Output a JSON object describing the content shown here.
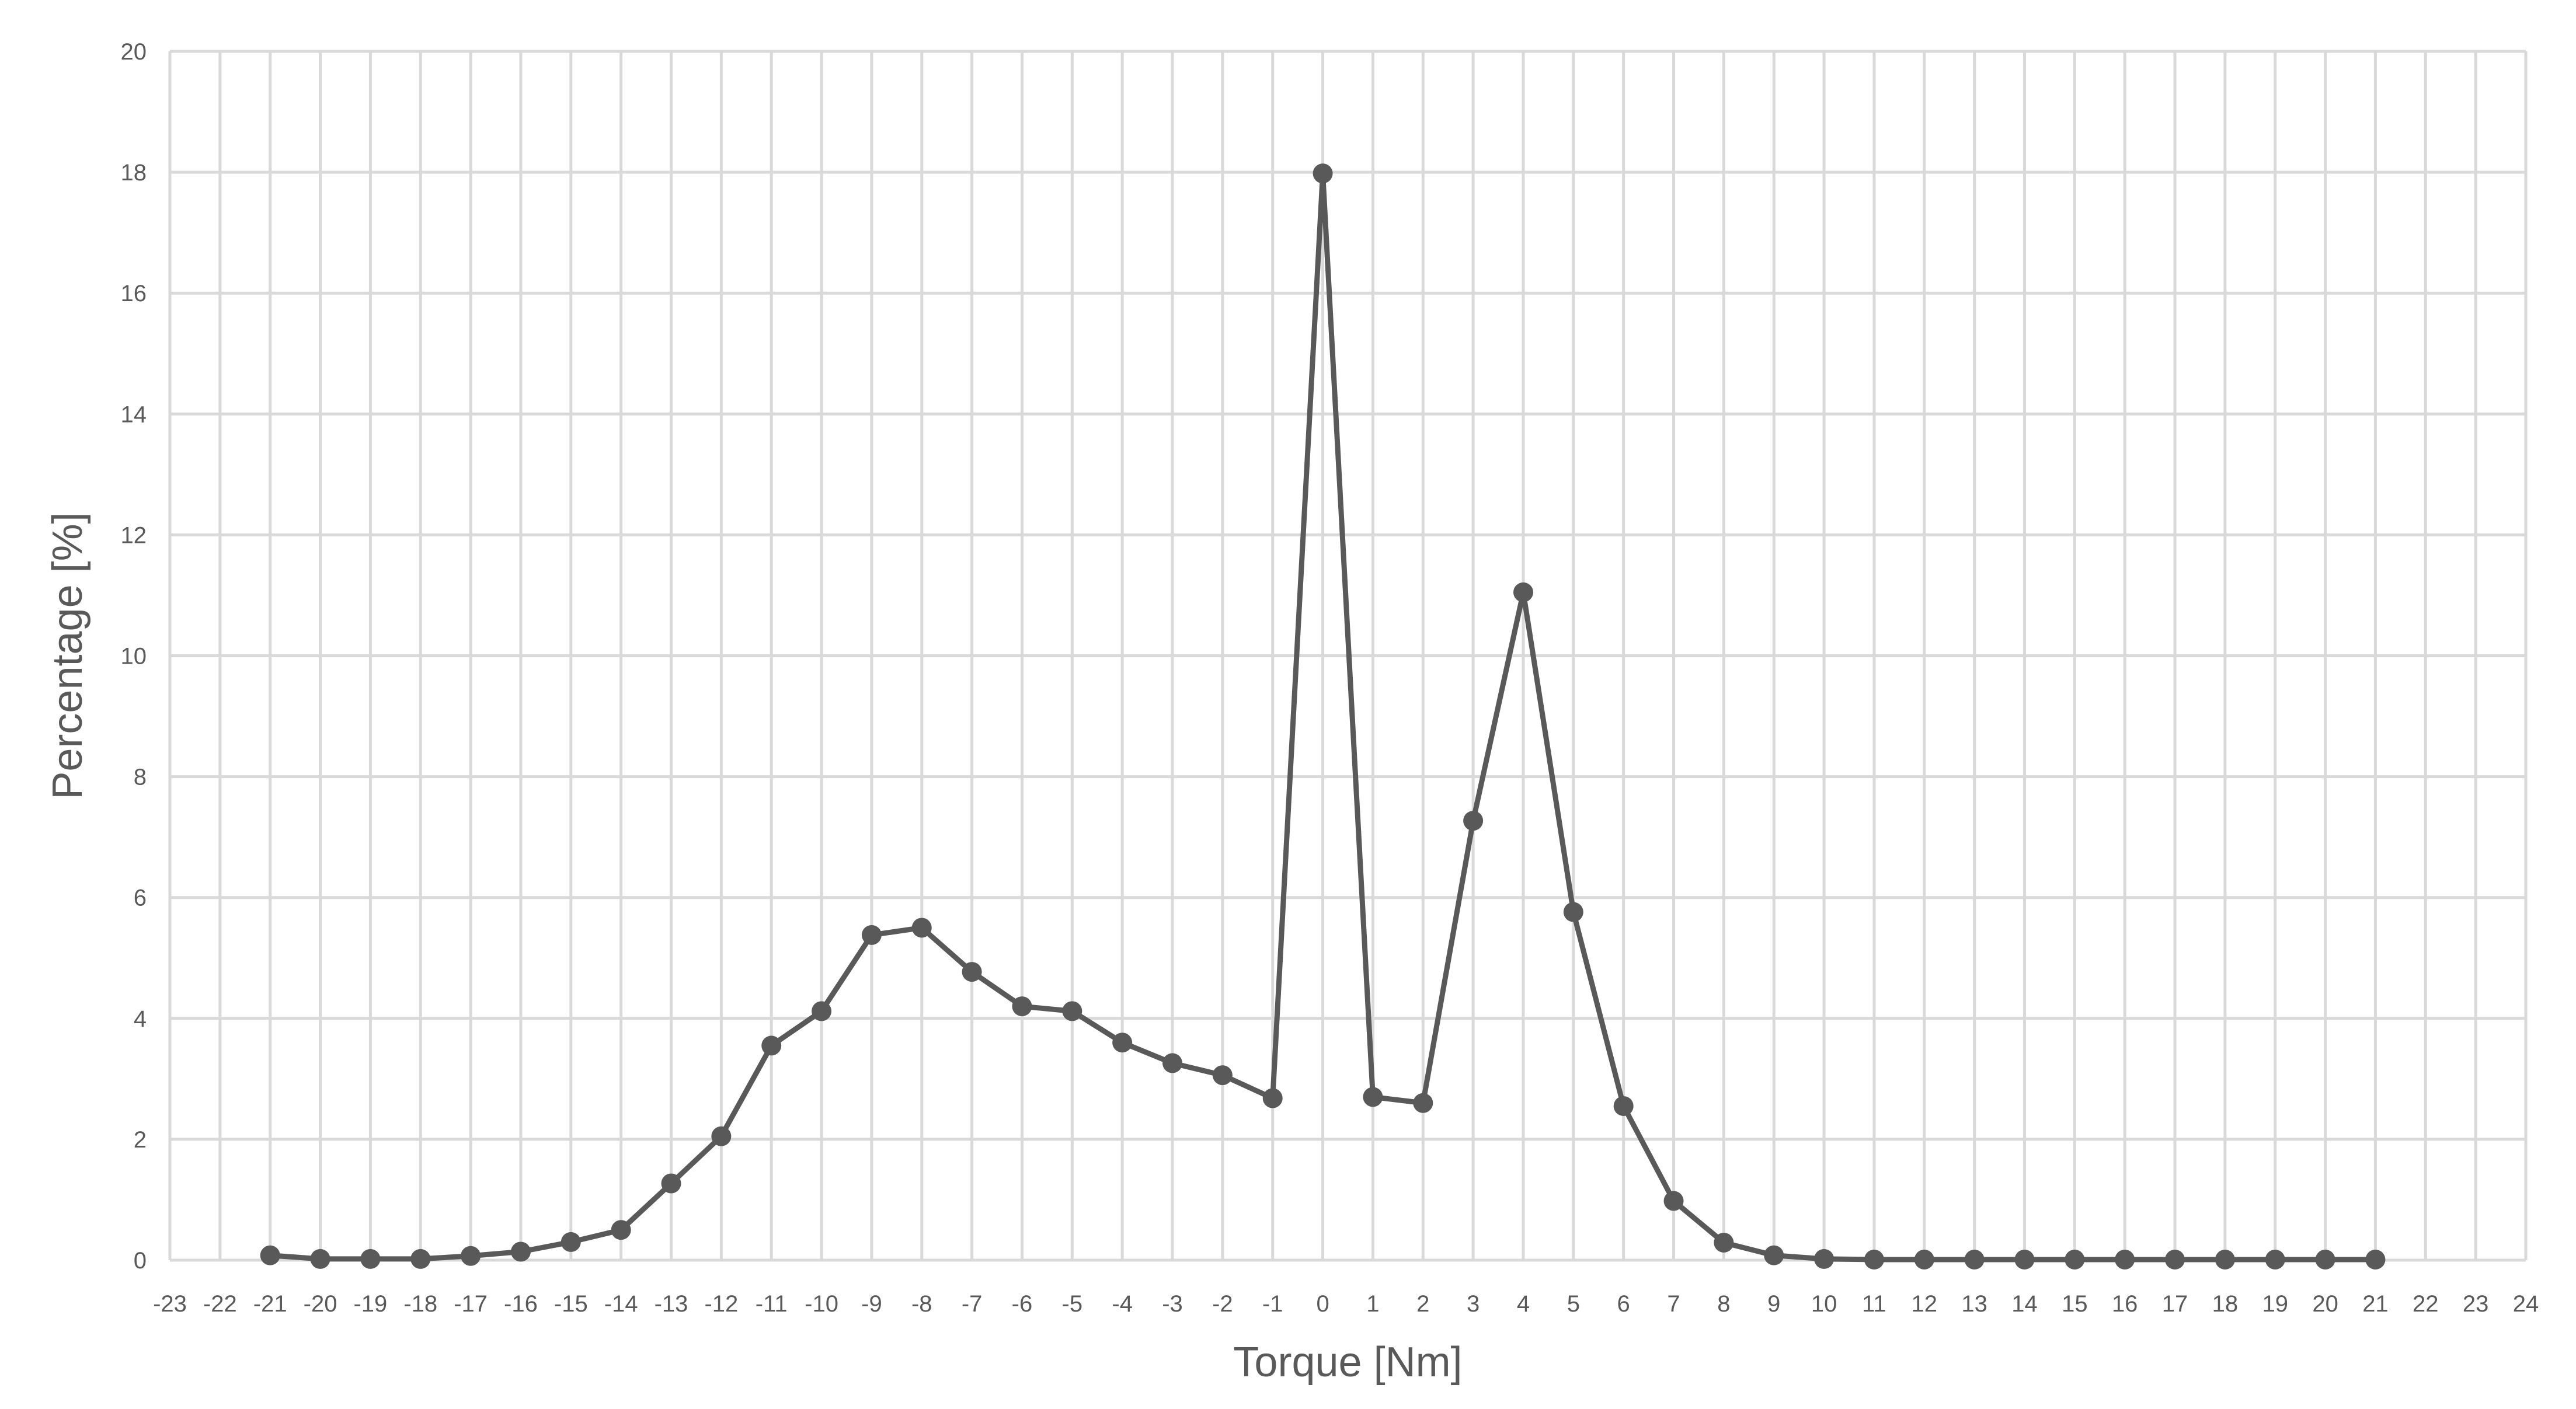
{
  "chart_data": {
    "type": "line",
    "xlabel": "Torque [Nm]",
    "ylabel": "Percentage  [%]",
    "xlim": [
      -23,
      24
    ],
    "ylim": [
      0,
      20
    ],
    "x_ticks": [
      -23,
      -22,
      -21,
      -20,
      -19,
      -18,
      -17,
      -16,
      -15,
      -14,
      -13,
      -12,
      -11,
      -10,
      -9,
      -8,
      -7,
      -6,
      -5,
      -4,
      -3,
      -2,
      -1,
      0,
      1,
      2,
      3,
      4,
      5,
      6,
      7,
      8,
      9,
      10,
      11,
      12,
      13,
      14,
      15,
      16,
      17,
      18,
      19,
      20,
      21,
      22,
      23,
      24
    ],
    "y_ticks": [
      0,
      2,
      4,
      6,
      8,
      10,
      12,
      14,
      16,
      18,
      20
    ],
    "grid": true,
    "legend": "none",
    "series": [
      {
        "color": "#595959",
        "x": [
          -21,
          -20,
          -19,
          -18,
          -17,
          -16,
          -15,
          -14,
          -13,
          -12,
          -11,
          -10,
          -9,
          -8,
          -7,
          -6,
          -5,
          -4,
          -3,
          -2,
          -1,
          0,
          1,
          2,
          3,
          4,
          5,
          6,
          7,
          8,
          9,
          10,
          11,
          12,
          13,
          14,
          15,
          16,
          17,
          18,
          19,
          20,
          21
        ],
        "y": [
          0.08,
          0.02,
          0.02,
          0.02,
          0.07,
          0.14,
          0.3,
          0.5,
          1.27,
          2.05,
          3.55,
          4.12,
          5.38,
          5.5,
          4.77,
          4.2,
          4.12,
          3.6,
          3.26,
          3.06,
          2.68,
          17.98,
          2.7,
          2.6,
          7.27,
          11.05,
          5.76,
          2.55,
          0.98,
          0.29,
          0.08,
          0.02,
          0.01,
          0.01,
          0.01,
          0.01,
          0.01,
          0.01,
          0.01,
          0.01,
          0.01,
          0.01,
          0.01
        ]
      }
    ]
  }
}
